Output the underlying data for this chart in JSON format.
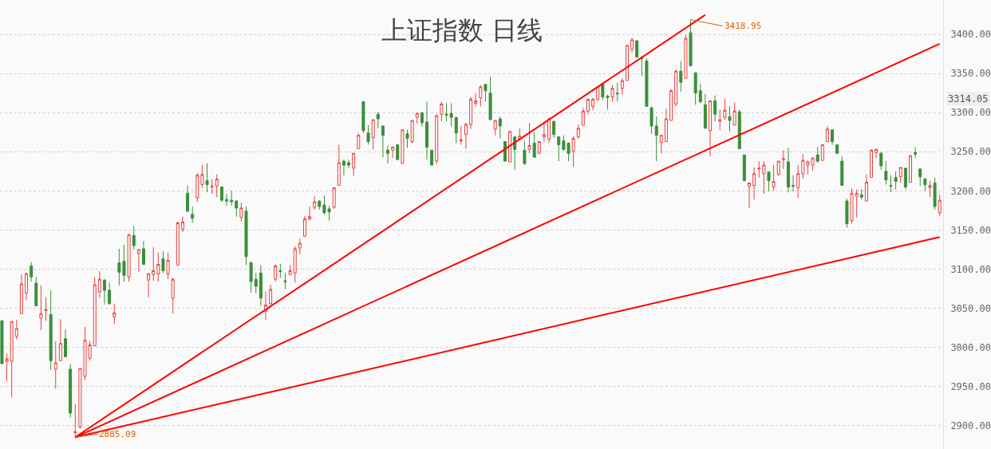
{
  "chart_data": {
    "type": "candlestick",
    "title": "上证指数 日线",
    "categories": [
      null,
      null,
      null,
      null,
      null,
      null,
      null,
      null,
      null,
      null,
      null,
      null,
      null,
      null,
      null,
      null,
      null,
      null,
      null,
      null,
      null,
      null,
      null,
      null,
      null,
      null,
      null,
      null,
      null,
      null,
      null,
      null,
      null,
      null,
      null,
      null,
      null,
      null,
      null,
      null,
      null,
      null,
      null,
      null,
      null,
      null,
      null,
      null,
      null,
      null,
      null,
      null,
      null,
      null,
      null,
      null,
      null,
      null,
      null,
      null,
      null,
      null,
      null,
      null,
      null,
      null,
      null,
      null,
      null,
      null,
      null,
      null,
      null,
      null,
      null,
      null,
      null,
      null,
      null,
      null,
      null,
      null,
      null,
      null,
      null,
      null,
      null,
      null,
      null,
      null,
      null,
      null,
      null,
      null,
      null,
      null,
      null,
      null,
      null,
      null,
      null,
      null,
      null,
      null,
      null,
      null,
      null,
      null,
      null,
      null,
      null,
      null,
      null,
      null,
      null,
      null,
      null,
      null,
      null,
      null,
      null,
      null,
      null,
      null,
      null,
      null,
      null,
      null,
      null,
      null,
      null,
      null,
      null,
      null,
      null,
      null,
      null,
      null,
      null,
      null,
      null,
      null,
      null,
      null,
      null,
      null,
      null,
      null,
      null,
      null,
      null,
      null,
      null,
      null,
      null,
      null,
      null,
      null,
      null,
      null,
      null,
      null,
      null,
      null,
      null,
      null,
      null,
      null,
      null,
      null,
      null,
      null,
      null,
      null,
      null,
      null,
      null,
      null,
      null,
      null,
      null,
      null,
      null,
      null,
      null,
      null,
      null,
      null,
      null,
      null,
      null,
      null,
      null
    ],
    "ohlc": [
      [
        3034,
        3034,
        2979,
        2979
      ],
      [
        2982,
        2992,
        2957,
        2985
      ],
      [
        2982,
        3033,
        2936,
        3033
      ],
      [
        3014,
        3035,
        3010,
        3024
      ],
      [
        3043,
        3093,
        3043,
        3081
      ],
      [
        3069,
        3096,
        3061,
        3094
      ],
      [
        3104,
        3109,
        3084,
        3090
      ],
      [
        3082,
        3090,
        3053,
        3053
      ],
      [
        3037,
        3079,
        3022,
        3043
      ],
      [
        3047,
        3064,
        3034,
        3048
      ],
      [
        3042,
        3073,
        2971,
        2983
      ],
      [
        2972,
        3008,
        2947,
        2980
      ],
      [
        2983,
        3036,
        2983,
        3005
      ],
      [
        3011,
        3023,
        2988,
        2988
      ],
      [
        2972,
        2979,
        2910,
        2916
      ],
      [
        2891,
        2928,
        2885.09,
        2892
      ],
      [
        2898,
        2973,
        2896,
        2973
      ],
      [
        2963,
        3026,
        2958,
        3009
      ],
      [
        2986,
        3008,
        2983,
        3003
      ],
      [
        3002,
        3090,
        3002,
        3080
      ],
      [
        3071,
        3097,
        3063,
        3087
      ],
      [
        3086,
        3087,
        3055,
        3073
      ],
      [
        3073,
        3083,
        3054,
        3056
      ],
      [
        3039,
        3056,
        3030,
        3044
      ],
      [
        3108,
        3126,
        3079,
        3096
      ],
      [
        3110,
        3131,
        3084,
        3092
      ],
      [
        3090,
        3145,
        3084,
        3144
      ],
      [
        3143,
        3155,
        3125,
        3130
      ],
      [
        3120,
        3125,
        3096,
        3125
      ],
      [
        3126,
        3136,
        3106,
        3106
      ],
      [
        3086,
        3094,
        3064,
        3094
      ],
      [
        3093,
        3128,
        3085,
        3098
      ],
      [
        3094,
        3121,
        3084,
        3106
      ],
      [
        3113,
        3123,
        3095,
        3098
      ],
      [
        3094,
        3121,
        3087,
        3111
      ],
      [
        3063,
        3089,
        3043,
        3087
      ],
      [
        3105,
        3161,
        3105,
        3159
      ],
      [
        3151,
        3167,
        3147,
        3160
      ],
      [
        3197,
        3207,
        3173,
        3174
      ],
      [
        3170,
        3180,
        3159,
        3165
      ],
      [
        3191,
        3223,
        3186,
        3220
      ],
      [
        3208,
        3233,
        3204,
        3221
      ],
      [
        3213,
        3235,
        3198,
        3208
      ],
      [
        3205,
        3215,
        3196,
        3206
      ],
      [
        3206,
        3221,
        3192,
        3215
      ],
      [
        3205,
        3205,
        3186,
        3188
      ],
      [
        3189,
        3196,
        3181,
        3187
      ],
      [
        3188,
        3200,
        3181,
        3186
      ],
      [
        3187,
        3188,
        3167,
        3178
      ],
      [
        3166,
        3185,
        3161,
        3178
      ],
      [
        3174,
        3180,
        3105,
        3116
      ],
      [
        3108,
        3110,
        3070,
        3084
      ],
      [
        3087,
        3095,
        3069,
        3078
      ],
      [
        3095,
        3105,
        3053,
        3063
      ],
      [
        3046,
        3071,
        3035,
        3054
      ],
      [
        3056,
        3080,
        3051,
        3074
      ],
      [
        3087,
        3106,
        3084,
        3104
      ],
      [
        3098,
        3107,
        3089,
        3097
      ],
      [
        3085,
        3095,
        3074,
        3084
      ],
      [
        3093,
        3105,
        3092,
        3098
      ],
      [
        3095,
        3129,
        3083,
        3126
      ],
      [
        3127,
        3139,
        3119,
        3133
      ],
      [
        3142,
        3168,
        3141,
        3164
      ],
      [
        3164,
        3180,
        3162,
        3167
      ],
      [
        3179,
        3193,
        3176,
        3186
      ],
      [
        3187,
        3188,
        3176,
        3180
      ],
      [
        3182,
        3194,
        3170,
        3172
      ],
      [
        3177,
        3181,
        3162,
        3173
      ],
      [
        3179,
        3204,
        3177,
        3204
      ],
      [
        3207,
        3259,
        3207,
        3236
      ],
      [
        3238,
        3240,
        3220,
        3233
      ],
      [
        3236,
        3240,
        3229,
        3233
      ],
      [
        3229,
        3248,
        3219,
        3248
      ],
      [
        3254,
        3274,
        3254,
        3271
      ],
      [
        3314,
        3315,
        3274,
        3277
      ],
      [
        3274,
        3284,
        3259,
        3263
      ],
      [
        3268,
        3291,
        3253,
        3291
      ],
      [
        3298,
        3301,
        3280,
        3292
      ],
      [
        3283,
        3283,
        3243,
        3271
      ],
      [
        3252,
        3258,
        3235,
        3248
      ],
      [
        3252,
        3256,
        3242,
        3256
      ],
      [
        3259,
        3259,
        3239,
        3240
      ],
      [
        3235,
        3278,
        3235,
        3278
      ],
      [
        3273,
        3278,
        3255,
        3267
      ],
      [
        3263,
        3290,
        3261,
        3290
      ],
      [
        3294,
        3300,
        3286,
        3299
      ],
      [
        3300,
        3300,
        3282,
        3287
      ],
      [
        3288,
        3314,
        3240,
        3256
      ],
      [
        3252,
        3252,
        3232,
        3233
      ],
      [
        3238,
        3298,
        3234,
        3296
      ],
      [
        3298,
        3314,
        3289,
        3311
      ],
      [
        3298,
        3312,
        3289,
        3297
      ],
      [
        3299,
        3312,
        3282,
        3294
      ],
      [
        3294,
        3294,
        3261,
        3274
      ],
      [
        3264,
        3283,
        3259,
        3265
      ],
      [
        3272,
        3287,
        3254,
        3285
      ],
      [
        3285,
        3320,
        3279,
        3317
      ],
      [
        3312,
        3325,
        3308,
        3315
      ],
      [
        3319,
        3335,
        3308,
        3333
      ],
      [
        3336,
        3337,
        3314,
        3328
      ],
      [
        3325,
        3346,
        3291,
        3291
      ],
      [
        3279,
        3290,
        3271,
        3290
      ],
      [
        3292,
        3295,
        3267,
        3283
      ],
      [
        3263,
        3263,
        3238,
        3238
      ],
      [
        3237,
        3276,
        3237,
        3276
      ],
      [
        3269,
        3269,
        3227,
        3253
      ],
      [
        3267,
        3280,
        3265,
        3270
      ],
      [
        3252,
        3264,
        3233,
        3235
      ],
      [
        3253,
        3287,
        3248,
        3258
      ],
      [
        3261,
        3275,
        3243,
        3243
      ],
      [
        3248,
        3263,
        3247,
        3263
      ],
      [
        3269,
        3287,
        3263,
        3272
      ],
      [
        3266,
        3294,
        3261,
        3292
      ],
      [
        3289,
        3289,
        3268,
        3272
      ],
      [
        3269,
        3269,
        3238,
        3259
      ],
      [
        3264,
        3271,
        3251,
        3253
      ],
      [
        3261,
        3262,
        3238,
        3248
      ],
      [
        3251,
        3270,
        3231,
        3267
      ],
      [
        3269,
        3285,
        3267,
        3280
      ],
      [
        3284,
        3306,
        3284,
        3302
      ],
      [
        3302,
        3317,
        3298,
        3317
      ],
      [
        3308,
        3319,
        3303,
        3317
      ],
      [
        3317,
        3333,
        3314,
        3333
      ],
      [
        3336,
        3336,
        3316,
        3320
      ],
      [
        3321,
        3323,
        3304,
        3319
      ],
      [
        3320,
        3335,
        3314,
        3331
      ],
      [
        3325,
        3338,
        3314,
        3324
      ],
      [
        3331,
        3344,
        3323,
        3341
      ],
      [
        3341,
        3386,
        3341,
        3386
      ],
      [
        3381,
        3396,
        3377,
        3393
      ],
      [
        3392,
        3392,
        3370,
        3371
      ],
      [
        3370,
        3372,
        3347,
        3369
      ],
      [
        3366,
        3369,
        3308,
        3308
      ],
      [
        3306,
        3308,
        3273,
        3283
      ],
      [
        3283,
        3295,
        3238,
        3271
      ],
      [
        3262,
        3271,
        3248,
        3271
      ],
      [
        3263,
        3305,
        3263,
        3292
      ],
      [
        3290,
        3330,
        3290,
        3328
      ],
      [
        3311,
        3355,
        3308,
        3353
      ],
      [
        3353,
        3366,
        3327,
        3339
      ],
      [
        3344,
        3400,
        3344,
        3395
      ],
      [
        3402,
        3418.95,
        3359,
        3360
      ],
      [
        3351,
        3351,
        3310,
        3325
      ],
      [
        3328,
        3337,
        3312,
        3314
      ],
      [
        3310,
        3324,
        3280,
        3280
      ],
      [
        3277,
        3315,
        3244,
        3315
      ],
      [
        3315,
        3322,
        3289,
        3298
      ],
      [
        3289,
        3304,
        3278,
        3291
      ],
      [
        3294,
        3318,
        3291,
        3303
      ],
      [
        3295,
        3308,
        3276,
        3290
      ],
      [
        3284,
        3313,
        3284,
        3302
      ],
      [
        3301,
        3304,
        3254,
        3254
      ],
      [
        3246,
        3246,
        3213,
        3213
      ],
      [
        3206,
        3210,
        3178,
        3210
      ],
      [
        3207,
        3230,
        3189,
        3222
      ],
      [
        3228,
        3238,
        3217,
        3229
      ],
      [
        3222,
        3238,
        3196,
        3233
      ],
      [
        3224,
        3225,
        3199,
        3213
      ],
      [
        3205,
        3233,
        3200,
        3212
      ],
      [
        3221,
        3238,
        3219,
        3238
      ],
      [
        3240,
        3252,
        3228,
        3241
      ],
      [
        3237,
        3255,
        3198,
        3205
      ],
      [
        3207,
        3220,
        3199,
        3206
      ],
      [
        3204,
        3233,
        3191,
        3222
      ],
      [
        3222,
        3247,
        3215,
        3239
      ],
      [
        3233,
        3239,
        3221,
        3237
      ],
      [
        3233,
        3243,
        3226,
        3242
      ],
      [
        3246,
        3256,
        3236,
        3238
      ],
      [
        3239,
        3259,
        3239,
        3259
      ],
      [
        3263,
        3283,
        3263,
        3279
      ],
      [
        3278,
        3278,
        3259,
        3263
      ],
      [
        3259,
        3259,
        3247,
        3248
      ],
      [
        3238,
        3244,
        3207,
        3207
      ],
      [
        3187,
        3190,
        3153,
        3158
      ],
      [
        3162,
        3203,
        3158,
        3197
      ],
      [
        3193,
        3202,
        3166,
        3197
      ],
      [
        3195,
        3202,
        3189,
        3192
      ],
      [
        3187,
        3221,
        3187,
        3211
      ],
      [
        3217,
        3253,
        3217,
        3252
      ],
      [
        3249,
        3254,
        3242,
        3253
      ],
      [
        3248,
        3250,
        3227,
        3232
      ],
      [
        3225,
        3238,
        3208,
        3214
      ],
      [
        3207,
        3220,
        3198,
        3206
      ],
      [
        3217,
        3225,
        3202,
        3212
      ],
      [
        3218,
        3230,
        3210,
        3230
      ],
      [
        3229,
        3229,
        3202,
        3205
      ],
      [
        3211,
        3245,
        3211,
        3245
      ],
      [
        3249,
        3256,
        3242,
        3247
      ],
      [
        3228,
        3228,
        3206,
        3218
      ],
      [
        3215,
        3217,
        3200,
        3208
      ],
      [
        3204,
        3213,
        3192,
        3207
      ],
      [
        3210,
        3217,
        3176,
        3180
      ],
      [
        3172,
        3195,
        3168,
        3188
      ]
    ],
    "colors": [
      "#3a8f3a",
      "#e8413e",
      "#e8413e",
      "#e8413e",
      "#e8413e",
      "#e8413e",
      "#3a8f3a",
      "#3a8f3a",
      "#e8413e",
      "#e8413e",
      "#3a8f3a",
      "#e8413e",
      "#e8413e",
      "#3a8f3a",
      "#3a8f3a",
      "#e8413e",
      "#e8413e",
      "#e8413e",
      "#e8413e",
      "#e8413e",
      "#e8413e",
      "#3a8f3a",
      "#3a8f3a",
      "#e8413e",
      "#3a8f3a",
      "#3a8f3a",
      "#e8413e",
      "#3a8f3a",
      "#e8413e",
      "#3a8f3a",
      "#e8413e",
      "#e8413e",
      "#e8413e",
      "#3a8f3a",
      "#e8413e",
      "#e8413e",
      "#e8413e",
      "#e8413e",
      "#3a8f3a",
      "#3a8f3a",
      "#e8413e",
      "#e8413e",
      "#3a8f3a",
      "#e8413e",
      "#e8413e",
      "#3a8f3a",
      "#3a8f3a",
      "#3a8f3a",
      "#3a8f3a",
      "#e8413e",
      "#3a8f3a",
      "#3a8f3a",
      "#3a8f3a",
      "#3a8f3a",
      "#e8413e",
      "#e8413e",
      "#e8413e",
      "#3a8f3a",
      "#3a8f3a",
      "#e8413e",
      "#e8413e",
      "#e8413e",
      "#e8413e",
      "#e8413e",
      "#e8413e",
      "#3a8f3a",
      "#3a8f3a",
      "#3a8f3a",
      "#e8413e",
      "#e8413e",
      "#3a8f3a",
      "#3a8f3a",
      "#e8413e",
      "#e8413e",
      "#3a8f3a",
      "#3a8f3a",
      "#e8413e",
      "#3a8f3a",
      "#3a8f3a",
      "#3a8f3a",
      "#e8413e",
      "#3a8f3a",
      "#e8413e",
      "#3a8f3a",
      "#e8413e",
      "#e8413e",
      "#3a8f3a",
      "#3a8f3a",
      "#3a8f3a",
      "#e8413e",
      "#e8413e",
      "#3a8f3a",
      "#3a8f3a",
      "#3a8f3a",
      "#e8413e",
      "#e8413e",
      "#e8413e",
      "#e8413e",
      "#e8413e",
      "#3a8f3a",
      "#3a8f3a",
      "#e8413e",
      "#3a8f3a",
      "#3a8f3a",
      "#e8413e",
      "#3a8f3a",
      "#e8413e",
      "#3a8f3a",
      "#e8413e",
      "#3a8f3a",
      "#e8413e",
      "#e8413e",
      "#e8413e",
      "#3a8f3a",
      "#3a8f3a",
      "#3a8f3a",
      "#3a8f3a",
      "#e8413e",
      "#e8413e",
      "#e8413e",
      "#e8413e",
      "#e8413e",
      "#e8413e",
      "#3a8f3a",
      "#3a8f3a",
      "#e8413e",
      "#3a8f3a",
      "#e8413e",
      "#e8413e",
      "#e8413e",
      "#3a8f3a",
      "#3a8f3a",
      "#3a8f3a",
      "#3a8f3a",
      "#3a8f3a",
      "#e8413e",
      "#e8413e",
      "#e8413e",
      "#e8413e",
      "#3a8f3a",
      "#e8413e",
      "#3a8f3a",
      "#3a8f3a",
      "#3a8f3a",
      "#3a8f3a",
      "#e8413e",
      "#3a8f3a",
      "#e8413e",
      "#e8413e",
      "#3a8f3a",
      "#e8413e",
      "#3a8f3a",
      "#3a8f3a",
      "#e8413e",
      "#e8413e",
      "#e8413e",
      "#e8413e",
      "#3a8f3a",
      "#e8413e",
      "#e8413e",
      "#e8413e",
      "#3a8f3a",
      "#3a8f3a",
      "#e8413e",
      "#e8413e",
      "#e8413e",
      "#e8413e",
      "#3a8f3a",
      "#e8413e",
      "#e8413e",
      "#3a8f3a",
      "#3a8f3a",
      "#3a8f3a",
      "#3a8f3a",
      "#e8413e",
      "#e8413e",
      "#3a8f3a",
      "#e8413e",
      "#e8413e",
      "#e8413e",
      "#3a8f3a",
      "#3a8f3a",
      "#3a8f3a",
      "#3a8f3a",
      "#e8413e",
      "#3a8f3a",
      "#e8413e",
      "#3a8f3a",
      "#3a8f3a",
      "#3a8f3a",
      "#e8413e",
      "#3a8f3a",
      "#e8413e"
    ],
    "series": [
      {
        "type": "line",
        "color": "#ff0000",
        "values": [
          null,
          null,
          null,
          null,
          null,
          null,
          null,
          null,
          null,
          null,
          null,
          null,
          null,
          null,
          null,
          2885,
          null,
          null,
          null,
          null,
          null,
          null,
          null,
          null,
          null,
          null,
          null,
          null,
          null,
          null,
          null,
          null,
          null,
          null,
          null,
          null,
          null,
          null,
          null,
          null,
          null,
          null,
          null,
          null,
          null,
          null,
          null,
          null,
          null,
          null,
          null,
          null,
          null,
          null,
          null,
          null,
          null,
          null,
          null,
          null,
          null,
          null,
          null,
          null,
          null,
          null,
          null,
          null,
          null,
          null,
          null,
          null,
          null,
          null,
          null,
          null,
          null,
          null,
          null,
          null,
          null,
          null,
          null,
          null,
          null,
          null,
          null,
          null,
          null,
          null,
          null,
          null,
          null,
          null,
          null,
          null,
          null,
          null,
          null,
          null,
          null,
          null,
          null,
          null,
          null,
          null,
          null,
          null,
          null,
          null,
          null,
          null,
          null,
          null,
          null,
          null,
          null,
          null,
          null,
          null,
          null,
          null,
          null,
          null,
          null,
          null,
          null,
          null,
          null,
          null,
          null,
          null,
          null,
          null,
          null,
          null,
          null,
          null,
          null,
          null,
          null,
          null,
          null,
          null,
          3425,
          null,
          null,
          null,
          null,
          null,
          null,
          null,
          null,
          null,
          null,
          null,
          null,
          null,
          null,
          null,
          null,
          null,
          null,
          null,
          null,
          null,
          null,
          null,
          null,
          null,
          null,
          null,
          null,
          null,
          null,
          null,
          null,
          null,
          null,
          null,
          null,
          null,
          null,
          null,
          null,
          null,
          null,
          null,
          null,
          null,
          null,
          null,
          null
        ]
      },
      {
        "type": "line",
        "color": "#ff0000",
        "values": [
          null,
          null,
          null,
          null,
          null,
          null,
          null,
          null,
          null,
          null,
          null,
          null,
          null,
          null,
          null,
          2885,
          null,
          null,
          null,
          null,
          null,
          null,
          null,
          null,
          null,
          null,
          null,
          null,
          null,
          null,
          null,
          null,
          null,
          null,
          null,
          null,
          null,
          null,
          null,
          null,
          null,
          null,
          null,
          null,
          null,
          null,
          null,
          null,
          null,
          null,
          null,
          null,
          null,
          null,
          null,
          null,
          null,
          null,
          null,
          null,
          null,
          null,
          null,
          null,
          null,
          null,
          null,
          null,
          null,
          null,
          null,
          null,
          null,
          null,
          null,
          null,
          null,
          null,
          null,
          null,
          null,
          null,
          null,
          null,
          null,
          null,
          null,
          null,
          null,
          null,
          null,
          null,
          null,
          null,
          null,
          null,
          null,
          null,
          null,
          null,
          null,
          null,
          null,
          null,
          null,
          null,
          null,
          null,
          null,
          null,
          null,
          null,
          null,
          null,
          null,
          null,
          null,
          null,
          null,
          null,
          null,
          null,
          null,
          null,
          null,
          null,
          null,
          null,
          null,
          null,
          null,
          null,
          null,
          null,
          null,
          null,
          null,
          null,
          null,
          null,
          null,
          null,
          null,
          null,
          null,
          null,
          null,
          null,
          null,
          null,
          null,
          null,
          null,
          null,
          null,
          null,
          null,
          null,
          null,
          null,
          null,
          null,
          null,
          null,
          null,
          null,
          null,
          null,
          null,
          null,
          null,
          null,
          null,
          null,
          null,
          null,
          null,
          null,
          null,
          null,
          null,
          null,
          null,
          null,
          null,
          null,
          null,
          null,
          null,
          null,
          null,
          null,
          3388
        ]
      },
      {
        "type": "line",
        "color": "#ff0000",
        "values": [
          null,
          null,
          null,
          null,
          null,
          null,
          null,
          null,
          null,
          null,
          null,
          null,
          null,
          null,
          null,
          2885,
          null,
          null,
          null,
          null,
          null,
          null,
          null,
          null,
          null,
          null,
          null,
          null,
          null,
          null,
          null,
          null,
          null,
          null,
          null,
          null,
          null,
          null,
          null,
          null,
          null,
          null,
          null,
          null,
          null,
          null,
          null,
          null,
          null,
          null,
          null,
          null,
          null,
          null,
          null,
          null,
          null,
          null,
          null,
          null,
          null,
          null,
          null,
          null,
          null,
          null,
          null,
          null,
          null,
          null,
          null,
          null,
          null,
          null,
          null,
          null,
          null,
          null,
          null,
          null,
          null,
          null,
          null,
          null,
          null,
          null,
          null,
          null,
          null,
          null,
          null,
          null,
          null,
          null,
          null,
          null,
          null,
          null,
          null,
          null,
          null,
          null,
          null,
          null,
          null,
          null,
          null,
          null,
          null,
          null,
          null,
          null,
          null,
          null,
          null,
          null,
          null,
          null,
          null,
          null,
          null,
          null,
          null,
          null,
          null,
          null,
          null,
          null,
          null,
          null,
          null,
          null,
          null,
          null,
          null,
          null,
          null,
          null,
          null,
          null,
          null,
          null,
          null,
          null,
          null,
          null,
          null,
          null,
          null,
          null,
          null,
          null,
          null,
          null,
          null,
          null,
          null,
          null,
          null,
          null,
          null,
          null,
          null,
          null,
          null,
          null,
          null,
          null,
          null,
          null,
          null,
          null,
          null,
          null,
          null,
          null,
          null,
          null,
          null,
          null,
          null,
          null,
          null,
          null,
          null,
          null,
          null,
          null,
          null,
          null,
          null,
          null,
          3141
        ]
      }
    ],
    "ylim": [
      2870,
      3444
    ],
    "yticks": [
      {
        "value": 2900,
        "label": "2900.00"
      },
      {
        "value": 2950,
        "label": "2950.00"
      },
      {
        "value": 3000,
        "label": "3000.00"
      },
      {
        "value": 3050,
        "label": "3050.00"
      },
      {
        "value": 3100,
        "label": "3100.00"
      },
      {
        "value": 3150,
        "label": "3150.00"
      },
      {
        "value": 3200,
        "label": "3200.00"
      },
      {
        "value": 3250,
        "label": "3250.00"
      },
      {
        "value": 3300,
        "label": "3300.00"
      },
      {
        "value": 3350,
        "label": "3350.00"
      },
      {
        "value": 3400,
        "label": "3400.00"
      }
    ],
    "annotations": [
      "3418.95",
      "2885.09",
      "3314.05"
    ],
    "grid": "y",
    "tick_labels": "y"
  }
}
